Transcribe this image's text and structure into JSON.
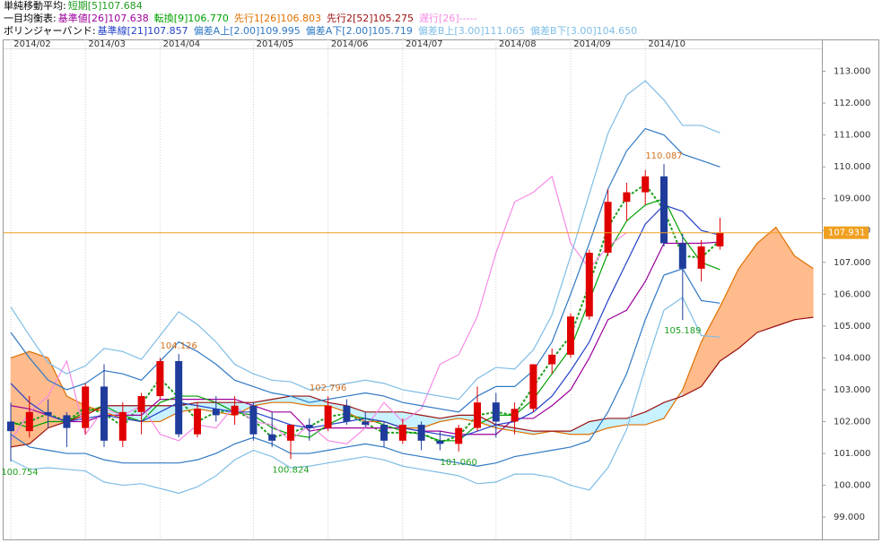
{
  "chart_data": {
    "type": "candlestick",
    "categories": [
      "2014/02",
      null,
      null,
      null,
      "2014/03",
      null,
      null,
      null,
      "2014/04",
      null,
      null,
      null,
      null,
      "2014/05",
      null,
      null,
      null,
      "2014/06",
      null,
      null,
      null,
      "2014/07",
      null,
      null,
      null,
      null,
      "2014/08",
      null,
      null,
      null,
      "2014/09",
      null,
      null,
      null,
      "2014/10",
      null,
      null,
      null,
      null,
      null,
      null,
      null,
      null,
      null
    ],
    "candles": {
      "open": [
        102.0,
        101.7,
        102.3,
        102.2,
        101.8,
        103.1,
        101.4,
        102.3,
        102.8,
        103.9,
        101.6,
        102.4,
        102.2,
        102.5,
        101.6,
        101.4,
        101.9,
        101.8,
        102.5,
        102.0,
        101.9,
        101.4,
        101.9,
        101.4,
        101.3,
        101.8,
        102.6,
        102.0,
        102.4,
        103.8,
        104.1,
        105.3,
        107.3,
        108.9,
        109.2,
        109.7,
        107.6,
        106.8,
        107.5
      ],
      "high": [
        102.6,
        102.8,
        102.7,
        102.3,
        103.2,
        103.8,
        102.6,
        102.9,
        104.0,
        104.126,
        102.6,
        102.8,
        102.8,
        102.6,
        102.3,
        101.9,
        102.1,
        102.796,
        102.7,
        102.3,
        102.0,
        102.1,
        102.0,
        101.7,
        101.9,
        103.1,
        102.9,
        102.6,
        103.8,
        104.3,
        105.4,
        107.4,
        109.3,
        109.5,
        109.9,
        110.087,
        107.9,
        107.7,
        108.4
      ],
      "low": [
        100.754,
        101.5,
        101.8,
        101.2,
        101.6,
        101.2,
        101.2,
        101.6,
        102.7,
        101.5,
        101.5,
        102.0,
        101.9,
        101.4,
        101.2,
        100.824,
        101.4,
        101.7,
        101.9,
        101.8,
        101.2,
        101.3,
        101.1,
        101.1,
        101.06,
        101.7,
        101.5,
        101.6,
        102.3,
        103.5,
        104.0,
        105.2,
        107.2,
        108.3,
        108.8,
        107.5,
        105.189,
        106.4,
        107.4
      ],
      "close": [
        101.7,
        102.3,
        102.2,
        101.8,
        103.1,
        101.4,
        102.3,
        102.8,
        103.9,
        101.6,
        102.4,
        102.2,
        102.5,
        101.6,
        101.4,
        101.9,
        101.8,
        102.5,
        102.0,
        101.9,
        101.4,
        101.9,
        101.4,
        101.3,
        101.8,
        102.6,
        102.0,
        102.4,
        103.8,
        104.1,
        105.3,
        107.3,
        108.9,
        109.2,
        109.7,
        107.6,
        106.8,
        107.5,
        107.931
      ],
      "up_color": "#e00000",
      "down_color": "#1f3c9c"
    },
    "groups": [
      {
        "title": "単純移動平均:",
        "series": [
          {
            "name": "短期[5]107.684",
            "color": "#1f9f1f",
            "dashed": true,
            "values": [
              101.9,
              102.0,
              102.25,
              102.0,
              102.45,
              102.25,
              101.85,
              102.55,
              103.35,
              102.75,
              102.0,
              102.3,
              102.35,
              102.05,
              101.5,
              101.65,
              101.85,
              102.15,
              102.25,
              101.95,
              101.65,
              101.65,
              101.65,
              101.35,
              101.55,
              102.2,
              102.3,
              102.2,
              103.1,
              103.95,
              104.7,
              106.3,
              108.1,
              109.05,
              109.45,
              108.65,
              107.2,
              107.15,
              107.684,
              null,
              null,
              null,
              null,
              null
            ]
          }
        ]
      },
      {
        "title": "一目均衡表:",
        "cloud_colors": [
          "#ffbb8c",
          "#c8f2ff"
        ],
        "series": [
          {
            "name": "基準値[26]107.638",
            "color": "#9b009b",
            "values": [
              102.5,
              102.4,
              102.2,
              102.0,
              102.0,
              102.2,
              102.2,
              102.2,
              102.7,
              102.7,
              102.7,
              102.7,
              102.7,
              102.5,
              102.3,
              102.3,
              101.7,
              101.8,
              101.8,
              101.8,
              101.8,
              101.8,
              101.7,
              101.7,
              101.6,
              101.6,
              101.6,
              102.1,
              102.1,
              102.5,
              103.0,
              104.0,
              105.2,
              105.5,
              106.4,
              107.6,
              107.6,
              107.6,
              107.638,
              null,
              null,
              null,
              null,
              null
            ]
          },
          {
            "name": "転換[9]106.770",
            "color": "#00a000",
            "values": [
              102.0,
              101.8,
              102.0,
              102.0,
              102.3,
              102.5,
              102.2,
              102.0,
              102.6,
              102.8,
              102.8,
              102.6,
              102.3,
              102.2,
              101.8,
              101.6,
              101.5,
              101.9,
              102.2,
              102.1,
              101.9,
              101.7,
              101.6,
              101.4,
              101.4,
              101.9,
              102.2,
              102.2,
              102.7,
              103.5,
              104.3,
              105.8,
              107.3,
              108.3,
              108.8,
              109.0,
              107.8,
              107.0,
              106.77,
              null,
              null,
              null,
              null,
              null
            ]
          },
          {
            "name": "先行1[26]106.803",
            "color": "#e07000",
            "values": [
              104.0,
              104.2,
              104.0,
              102.8,
              102.5,
              102.3,
              102.1,
              102.0,
              102.0,
              102.3,
              102.4,
              102.3,
              102.2,
              102.5,
              102.6,
              102.6,
              102.5,
              102.5,
              102.3,
              102.0,
              102.0,
              101.8,
              101.8,
              102.0,
              102.1,
              102.0,
              101.8,
              101.7,
              101.6,
              101.7,
              101.6,
              101.6,
              101.8,
              101.9,
              101.9,
              102.1,
              103.0,
              104.5,
              105.6,
              106.8,
              107.6,
              108.1,
              107.2,
              106.803
            ]
          },
          {
            "name": "先行2[52]105.275",
            "color": "#9b1010",
            "values": [
              101.2,
              101.3,
              101.8,
              102.0,
              102.2,
              102.5,
              102.5,
              102.5,
              102.5,
              102.5,
              102.6,
              102.6,
              102.6,
              102.6,
              102.7,
              102.8,
              102.8,
              102.6,
              102.5,
              102.3,
              102.3,
              102.3,
              102.2,
              102.1,
              102.2,
              102.2,
              101.9,
              101.8,
              101.7,
              101.7,
              101.7,
              102.0,
              102.1,
              102.1,
              102.3,
              102.6,
              102.8,
              103.1,
              103.9,
              104.3,
              104.8,
              105.0,
              105.2,
              105.275
            ]
          },
          {
            "name": "遅行[26]-----",
            "color": "#f58ae6",
            "values": [
              101.4,
              102.3,
              102.8,
              103.9,
              101.6,
              102.4,
              102.2,
              102.5,
              101.6,
              101.4,
              101.9,
              101.8,
              102.5,
              102.0,
              101.9,
              101.4,
              101.9,
              101.4,
              101.3,
              101.8,
              102.6,
              102.0,
              102.4,
              103.8,
              104.1,
              105.3,
              107.3,
              108.9,
              109.2,
              109.7,
              107.6,
              106.8,
              107.5,
              107.931,
              null,
              null,
              null,
              null,
              null,
              null,
              null,
              null,
              null,
              null
            ]
          }
        ]
      },
      {
        "title": "ボリンジャーバンド:",
        "series": [
          {
            "name": "基準線[21]107.857",
            "color": "#2340c8",
            "values": [
              103.2,
              102.6,
              102.2,
              102.0,
              102.1,
              102.2,
              102.1,
              102.0,
              102.3,
              102.6,
              102.5,
              102.4,
              102.3,
              102.3,
              102.1,
              101.9,
              101.8,
              101.9,
              102.0,
              102.1,
              102.0,
              101.8,
              101.7,
              101.6,
              101.5,
              101.7,
              101.9,
              102.0,
              102.3,
              102.8,
              103.6,
              104.5,
              105.8,
              107.0,
              108.2,
              108.8,
              108.6,
              108.0,
              107.857,
              null,
              null,
              null,
              null,
              null
            ]
          },
          {
            "name": "偏差A上[2.00]109.995",
            "color": "#2f78c4",
            "values": [
              104.8,
              104.0,
              103.3,
              103.0,
              103.2,
              103.6,
              103.5,
              103.3,
              103.9,
              104.5,
              104.2,
              103.8,
              103.3,
              103.1,
              102.9,
              102.8,
              102.6,
              102.7,
              102.8,
              102.9,
              102.8,
              102.6,
              102.5,
              102.4,
              102.3,
              102.8,
              103.1,
              103.1,
              103.6,
              104.5,
              106.0,
              107.6,
              109.3,
              110.5,
              111.2,
              111.0,
              110.4,
              110.2,
              109.995,
              null,
              null,
              null,
              null,
              null
            ]
          },
          {
            "name": "偏差A下[2.00]105.719",
            "color": "#2f78c4",
            "values": [
              101.6,
              101.2,
              101.1,
              101.0,
              101.0,
              100.8,
              100.7,
              100.7,
              100.7,
              100.7,
              100.8,
              101.0,
              101.3,
              101.5,
              101.3,
              101.0,
              101.0,
              101.1,
              101.2,
              101.3,
              101.2,
              101.0,
              100.9,
              100.8,
              100.7,
              100.6,
              100.7,
              100.9,
              101.0,
              101.1,
              101.2,
              101.4,
              102.3,
              103.5,
              105.2,
              106.6,
              106.8,
              105.8,
              105.719,
              null,
              null,
              null,
              null,
              null
            ]
          },
          {
            "name": "偏差B上[3.00]111.065",
            "color": "#7fbde6",
            "values": [
              105.6,
              104.7,
              103.85,
              103.5,
              103.75,
              104.3,
              104.2,
              103.95,
              104.7,
              105.45,
              105.05,
              104.5,
              103.8,
              103.5,
              103.3,
              103.25,
              103.0,
              103.1,
              103.2,
              103.3,
              103.2,
              103.0,
              102.9,
              102.8,
              102.7,
              103.35,
              103.7,
              103.65,
              104.25,
              105.35,
              107.2,
              109.15,
              111.05,
              112.25,
              112.7,
              112.1,
              111.3,
              111.3,
              111.065,
              null,
              null,
              null,
              null,
              null
            ]
          },
          {
            "name": "偏差B下[3.00]104.650",
            "color": "#7fbde6",
            "values": [
              100.8,
              100.5,
              100.55,
              100.5,
              100.45,
              100.1,
              100.0,
              100.05,
              99.9,
              99.75,
              99.95,
              100.3,
              100.8,
              101.1,
              100.9,
              100.55,
              100.6,
              100.7,
              100.8,
              100.9,
              100.8,
              100.6,
              100.5,
              100.4,
              100.3,
              100.05,
              100.1,
              100.35,
              100.35,
              100.25,
              100.0,
              99.85,
              100.55,
              101.75,
              103.7,
              105.5,
              105.9,
              104.7,
              104.65,
              null,
              null,
              null,
              null,
              null
            ]
          }
        ]
      }
    ],
    "annotations": [
      100.754,
      104.126,
      100.824,
      102.796,
      {
        "value": 101.06,
        "label": "101.060"
      },
      110.087,
      105.189
    ],
    "high_color": "#d07020",
    "low_color": "#1f9f1f",
    "last_price": 107.931,
    "last_price_color": "#f0a020",
    "ylim": [
      98.3,
      114.0
    ],
    "yticks": [
      {
        "value": 99,
        "label": "99.000"
      },
      {
        "value": 100,
        "label": "100.000"
      },
      {
        "value": 101,
        "label": "101.000"
      },
      {
        "value": 102,
        "label": "102.000"
      },
      {
        "value": 103,
        "label": "103.000"
      },
      {
        "value": 104,
        "label": "104.000"
      },
      {
        "value": 105,
        "label": "105.000"
      },
      {
        "value": 106,
        "label": "106.000"
      },
      {
        "value": 107,
        "label": "107.000"
      },
      {
        "value": 108,
        "label": "108.000"
      },
      {
        "value": 109,
        "label": "109.000"
      },
      {
        "value": 110,
        "label": "110.000"
      },
      {
        "value": 111,
        "label": "111.000"
      },
      {
        "value": 112,
        "label": "112.000"
      },
      {
        "value": 113,
        "label": "113.000"
      }
    ],
    "grid": true
  }
}
